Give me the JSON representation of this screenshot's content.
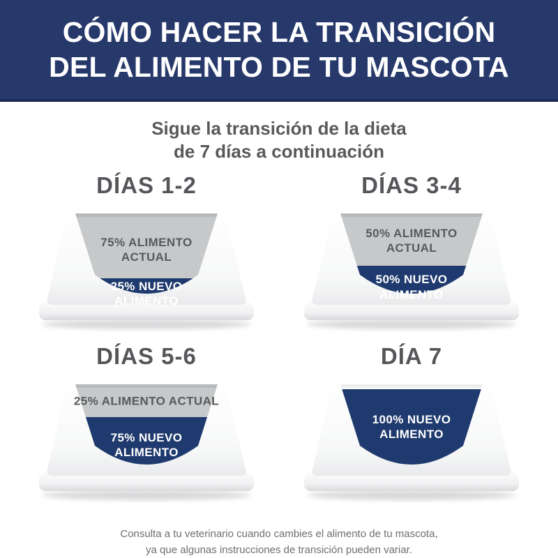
{
  "header": {
    "title": "CÓMO HACER LA TRANSICIÓN\nDEL ALIMENTO DE TU MASCOTA"
  },
  "subtitle": "Sigue la transición de la dieta\nde 7 días a continuación",
  "days": [
    {
      "title": "DÍAS 1-2",
      "old_label": "75% ALIMENTO\nACTUAL",
      "new_label": "25% NUEVO\nALIMENTO",
      "new_pct": 25
    },
    {
      "title": "DÍAS 3-4",
      "old_label": "50% ALIMENTO\nACTUAL",
      "new_label": "50% NUEVO\nALIMENTO",
      "new_pct": 50
    },
    {
      "title": "DÍAS 5-6",
      "old_label": "25% ALIMENTO ACTUAL",
      "new_label": "75% NUEVO\nALIMENTO",
      "new_pct": 75
    },
    {
      "title": "DÍA 7",
      "old_label": null,
      "new_label": "100% NUEVO\nALIMENTO",
      "new_pct": 100
    }
  ],
  "footer": "Consulta a tu veterinario cuando cambies el alimento de tu mascota,\nya que algunas instrucciones de transición pueden variar.",
  "colors": {
    "header_bg": "#27396b",
    "new_food": "#1f3a6e",
    "old_food": "#c6c8ca",
    "title_text": "#55565a",
    "body_text": "#58595b",
    "footer_text": "#6d6e71"
  }
}
